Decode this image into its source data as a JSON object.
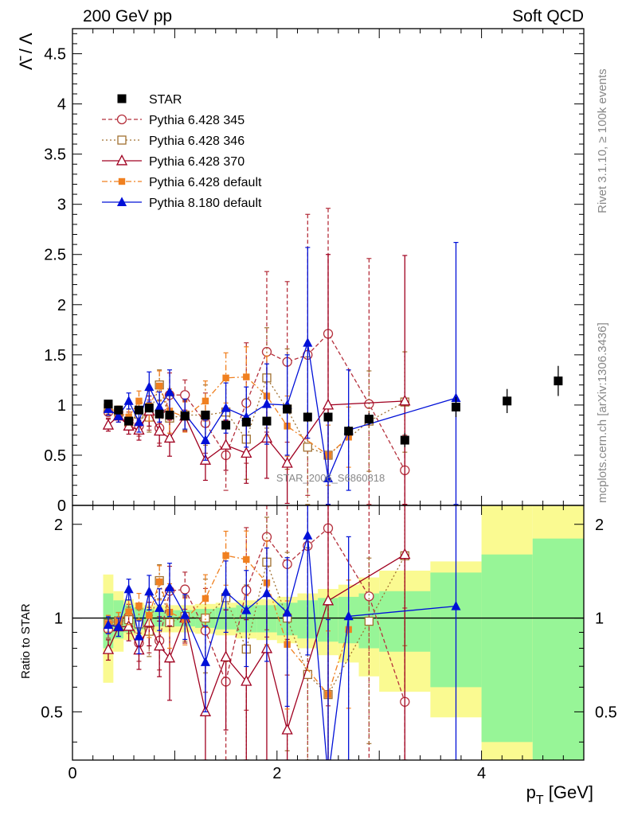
{
  "header": {
    "left": "200 GeV pp",
    "right": "Soft QCD"
  },
  "side_text": {
    "rivet": "Rivet 3.1.10, ≥ 100k events",
    "site": "mcplots.cern.ch [arXiv:1306.3436]"
  },
  "watermark": "STAR_2006_S6860818",
  "axes": {
    "ylabel_main": "Λ̄ / Λ",
    "ylabel_ratio": "Ratio to STAR",
    "xlabel": "p_T [GeV]",
    "xlabel_main": "p",
    "xlabel_sub": "T",
    "xlabel_unit": " [GeV]"
  },
  "chart_data": {
    "type": "scatter",
    "xlim": [
      0,
      5.0
    ],
    "main": {
      "ylim": [
        0,
        4.75
      ],
      "yticks": [
        "0",
        "0.5",
        "1",
        "1.5",
        "2",
        "2.5",
        "3",
        "3.5",
        "4",
        "4.5"
      ]
    },
    "ratio": {
      "ylim": [
        0.35,
        2.3
      ],
      "yticks": [
        "0.5",
        "1",
        "2"
      ]
    },
    "xticks": [
      "0",
      "2",
      "4"
    ],
    "reference": {
      "name": "STAR",
      "x": [
        0.35,
        0.45,
        0.55,
        0.65,
        0.75,
        0.85,
        0.95,
        1.1,
        1.3,
        1.5,
        1.7,
        1.9,
        2.1,
        2.3,
        2.5,
        2.7,
        2.9,
        3.25,
        3.75,
        4.25,
        4.75
      ],
      "xlow": [
        0.3,
        0.4,
        0.5,
        0.6,
        0.7,
        0.8,
        0.9,
        1.0,
        1.2,
        1.4,
        1.6,
        1.8,
        2.0,
        2.2,
        2.4,
        2.6,
        2.8,
        3.0,
        3.5,
        4.0,
        4.5
      ],
      "xhigh": [
        0.4,
        0.5,
        0.6,
        0.7,
        0.8,
        0.9,
        1.0,
        1.2,
        1.4,
        1.6,
        1.8,
        2.0,
        2.2,
        2.4,
        2.6,
        2.8,
        3.0,
        3.5,
        4.0,
        4.5,
        5.0
      ],
      "y": [
        1.01,
        0.95,
        0.84,
        0.95,
        0.97,
        0.91,
        0.9,
        0.89,
        0.9,
        0.8,
        0.83,
        0.84,
        0.96,
        0.88,
        0.88,
        0.74,
        0.86,
        0.65,
        0.98,
        1.04,
        1.24
      ],
      "stat": [
        0.03,
        0.03,
        0.03,
        0.03,
        0.03,
        0.03,
        0.03,
        0.03,
        0.03,
        0.03,
        0.04,
        0.04,
        0.04,
        0.05,
        0.05,
        0.05,
        0.06,
        0.07,
        0.1,
        0.12,
        0.15
      ],
      "band_inner": [
        0.2,
        0.14,
        0.1,
        0.08,
        0.07,
        0.06,
        0.06,
        0.06,
        0.07,
        0.08,
        0.1,
        0.1,
        0.12,
        0.14,
        0.16,
        0.17,
        0.2,
        0.22,
        0.4,
        0.6,
        0.8
      ],
      "band_outer": [
        0.38,
        0.22,
        0.15,
        0.12,
        0.1,
        0.1,
        0.1,
        0.1,
        0.11,
        0.12,
        0.14,
        0.15,
        0.17,
        0.2,
        0.24,
        0.28,
        0.35,
        0.42,
        0.52,
        1.3,
        1.3
      ]
    },
    "series": [
      {
        "name": "Pythia 6.428 345",
        "color": "#b5303c",
        "dash": "5,3",
        "marker": "circle-open",
        "x": [
          0.35,
          0.45,
          0.55,
          0.65,
          0.75,
          0.85,
          0.95,
          1.1,
          1.3,
          1.5,
          1.7,
          1.9,
          2.1,
          2.3,
          2.5,
          2.9,
          3.25
        ],
        "y": [
          0.93,
          0.93,
          0.85,
          0.79,
          0.9,
          0.77,
          1.1,
          1.1,
          0.82,
          0.5,
          1.02,
          1.53,
          1.43,
          1.5,
          1.71,
          1.01,
          0.35
        ],
        "err": [
          0.06,
          0.06,
          0.08,
          0.1,
          0.15,
          0.15,
          0.22,
          0.15,
          0.3,
          0.35,
          0.6,
          0.8,
          0.8,
          1.4,
          1.25,
          1.45,
          0.35
        ]
      },
      {
        "name": "Pythia 6.428 346",
        "color": "#a07030",
        "dash": "2,3",
        "marker": "square-open",
        "x": [
          0.35,
          0.45,
          0.55,
          0.65,
          0.75,
          0.85,
          0.95,
          1.1,
          1.3,
          1.5,
          1.7,
          1.9,
          2.1,
          2.3,
          2.5,
          2.9,
          3.25
        ],
        "y": [
          0.97,
          0.93,
          0.83,
          0.91,
          0.88,
          1.2,
          0.87,
          0.9,
          0.9,
          0.93,
          0.66,
          1.27,
          0.96,
          0.58,
          0.5,
          0.84,
          1.03
        ],
        "err": [
          0.06,
          0.06,
          0.08,
          0.1,
          0.15,
          0.15,
          0.22,
          0.15,
          0.3,
          0.35,
          0.4,
          0.5,
          0.6,
          0.9,
          0.5,
          0.5,
          0.5
        ]
      },
      {
        "name": "Pythia 6.428 370",
        "color": "#a00020",
        "dash": "",
        "marker": "triangle-open",
        "x": [
          0.35,
          0.45,
          0.55,
          0.65,
          0.75,
          0.85,
          0.95,
          1.1,
          1.3,
          1.5,
          1.7,
          1.9,
          2.1,
          2.5,
          3.25
        ],
        "y": [
          0.8,
          0.89,
          0.79,
          0.75,
          0.94,
          0.74,
          0.67,
          0.89,
          0.45,
          0.6,
          0.52,
          0.67,
          0.42,
          1.0,
          1.04
        ],
        "err": [
          0.06,
          0.06,
          0.08,
          0.1,
          0.15,
          0.15,
          0.18,
          0.15,
          0.2,
          0.25,
          0.3,
          0.4,
          0.4,
          1.5,
          1.45
        ]
      },
      {
        "name": "Pythia 6.428 default",
        "color": "#f08020",
        "dash": "7,3,2,3",
        "marker": "square-filled",
        "x": [
          0.35,
          0.45,
          0.55,
          0.65,
          0.75,
          0.85,
          0.95,
          1.1,
          1.3,
          1.5,
          1.7,
          1.9,
          2.1,
          2.5,
          2.7
        ],
        "y": [
          0.97,
          0.93,
          0.88,
          1.04,
          0.99,
          1.19,
          0.94,
          0.88,
          1.04,
          1.27,
          1.28,
          1.09,
          0.79,
          0.5,
          0.68
        ],
        "err": [
          0.06,
          0.06,
          0.08,
          0.1,
          0.15,
          0.15,
          0.22,
          0.15,
          0.2,
          0.25,
          0.3,
          0.4,
          0.3,
          0.3,
          0.3
        ]
      },
      {
        "name": "Pythia 8.180 default",
        "color": "#0010d8",
        "dash": "",
        "marker": "triangle-filled",
        "x": [
          0.35,
          0.45,
          0.55,
          0.65,
          0.75,
          0.85,
          0.95,
          1.1,
          1.3,
          1.5,
          1.7,
          1.9,
          2.1,
          2.3,
          2.5,
          2.7,
          3.75
        ],
        "y": [
          0.96,
          0.89,
          1.04,
          0.83,
          1.18,
          0.98,
          1.13,
          0.91,
          0.65,
          0.97,
          0.88,
          1.01,
          1.0,
          1.62,
          0.27,
          0.75,
          1.07
        ],
        "err": [
          0.06,
          0.06,
          0.08,
          0.1,
          0.15,
          0.15,
          0.22,
          0.15,
          0.2,
          0.25,
          0.3,
          0.4,
          0.5,
          0.95,
          0.6,
          0.6,
          1.55
        ]
      }
    ],
    "legend": {
      "placement": "upper-left",
      "entries": [
        "STAR",
        "Pythia 6.428 345",
        "Pythia 6.428 346",
        "Pythia 6.428 370",
        "Pythia 6.428 default",
        "Pythia 8.180 default"
      ]
    },
    "band_colors": {
      "inner": "#97f597",
      "outer": "#fafa91"
    },
    "ref_color": "#000000"
  }
}
